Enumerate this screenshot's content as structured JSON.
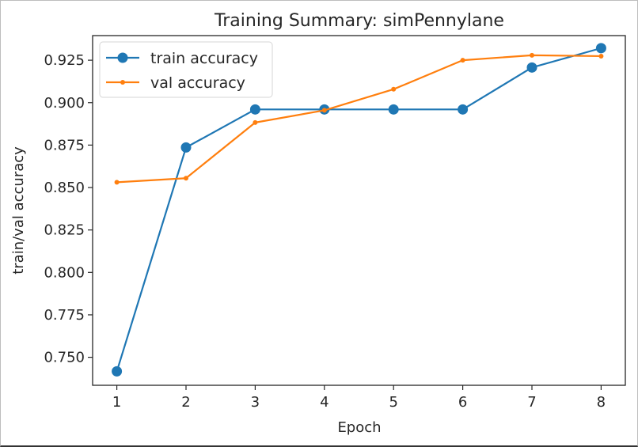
{
  "chart_data": {
    "type": "line",
    "title": "Training Summary: simPennylane",
    "xlabel": "Epoch",
    "ylabel": "train/val accuracy",
    "x": [
      1,
      2,
      3,
      4,
      5,
      6,
      7,
      8
    ],
    "x_ticks": [
      "1",
      "2",
      "3",
      "4",
      "5",
      "6",
      "7",
      "8"
    ],
    "y_ticks": [
      "0.750",
      "0.775",
      "0.800",
      "0.825",
      "0.850",
      "0.875",
      "0.900",
      "0.925"
    ],
    "ylim": [
      0.7335,
      0.9395
    ],
    "xlim": [
      0.65,
      8.35
    ],
    "grid": false,
    "legend_position": "upper left",
    "series": [
      {
        "name": "train accuracy",
        "color": "#1f77b4",
        "marker": "circle-large",
        "values": [
          0.7417,
          0.8736,
          0.896,
          0.896,
          0.896,
          0.896,
          0.9207,
          0.9321
        ]
      },
      {
        "name": "val accuracy",
        "color": "#ff7f0e",
        "marker": "dot-small",
        "values": [
          0.8531,
          0.8555,
          0.8883,
          0.8955,
          0.9079,
          0.925,
          0.9279,
          0.9274
        ]
      }
    ]
  }
}
